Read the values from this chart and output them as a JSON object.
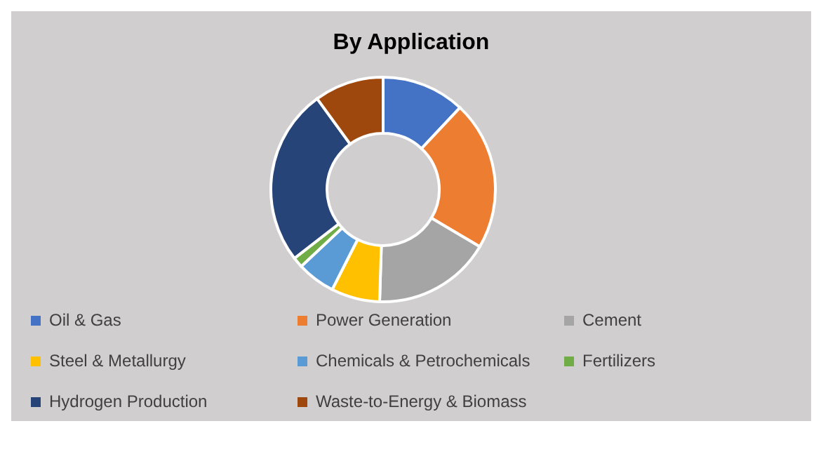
{
  "chart_data": {
    "type": "donut",
    "title": "By Application",
    "categories": [
      "Oil & Gas",
      "Power Generation",
      "Cement",
      "Steel & Metallurgy",
      "Chemicals & Petrochemicals",
      "Fertilizers",
      "Hydrogen Production",
      "Waste-to-Energy & Biomass"
    ],
    "values": [
      12,
      21.5,
      17,
      7,
      5.5,
      1.5,
      25.5,
      10
    ],
    "colors": [
      "#4472c4",
      "#ed7d31",
      "#a5a5a5",
      "#ffc000",
      "#5b9bd5",
      "#70ad47",
      "#264478",
      "#9e480e"
    ],
    "legend": "bottom"
  }
}
